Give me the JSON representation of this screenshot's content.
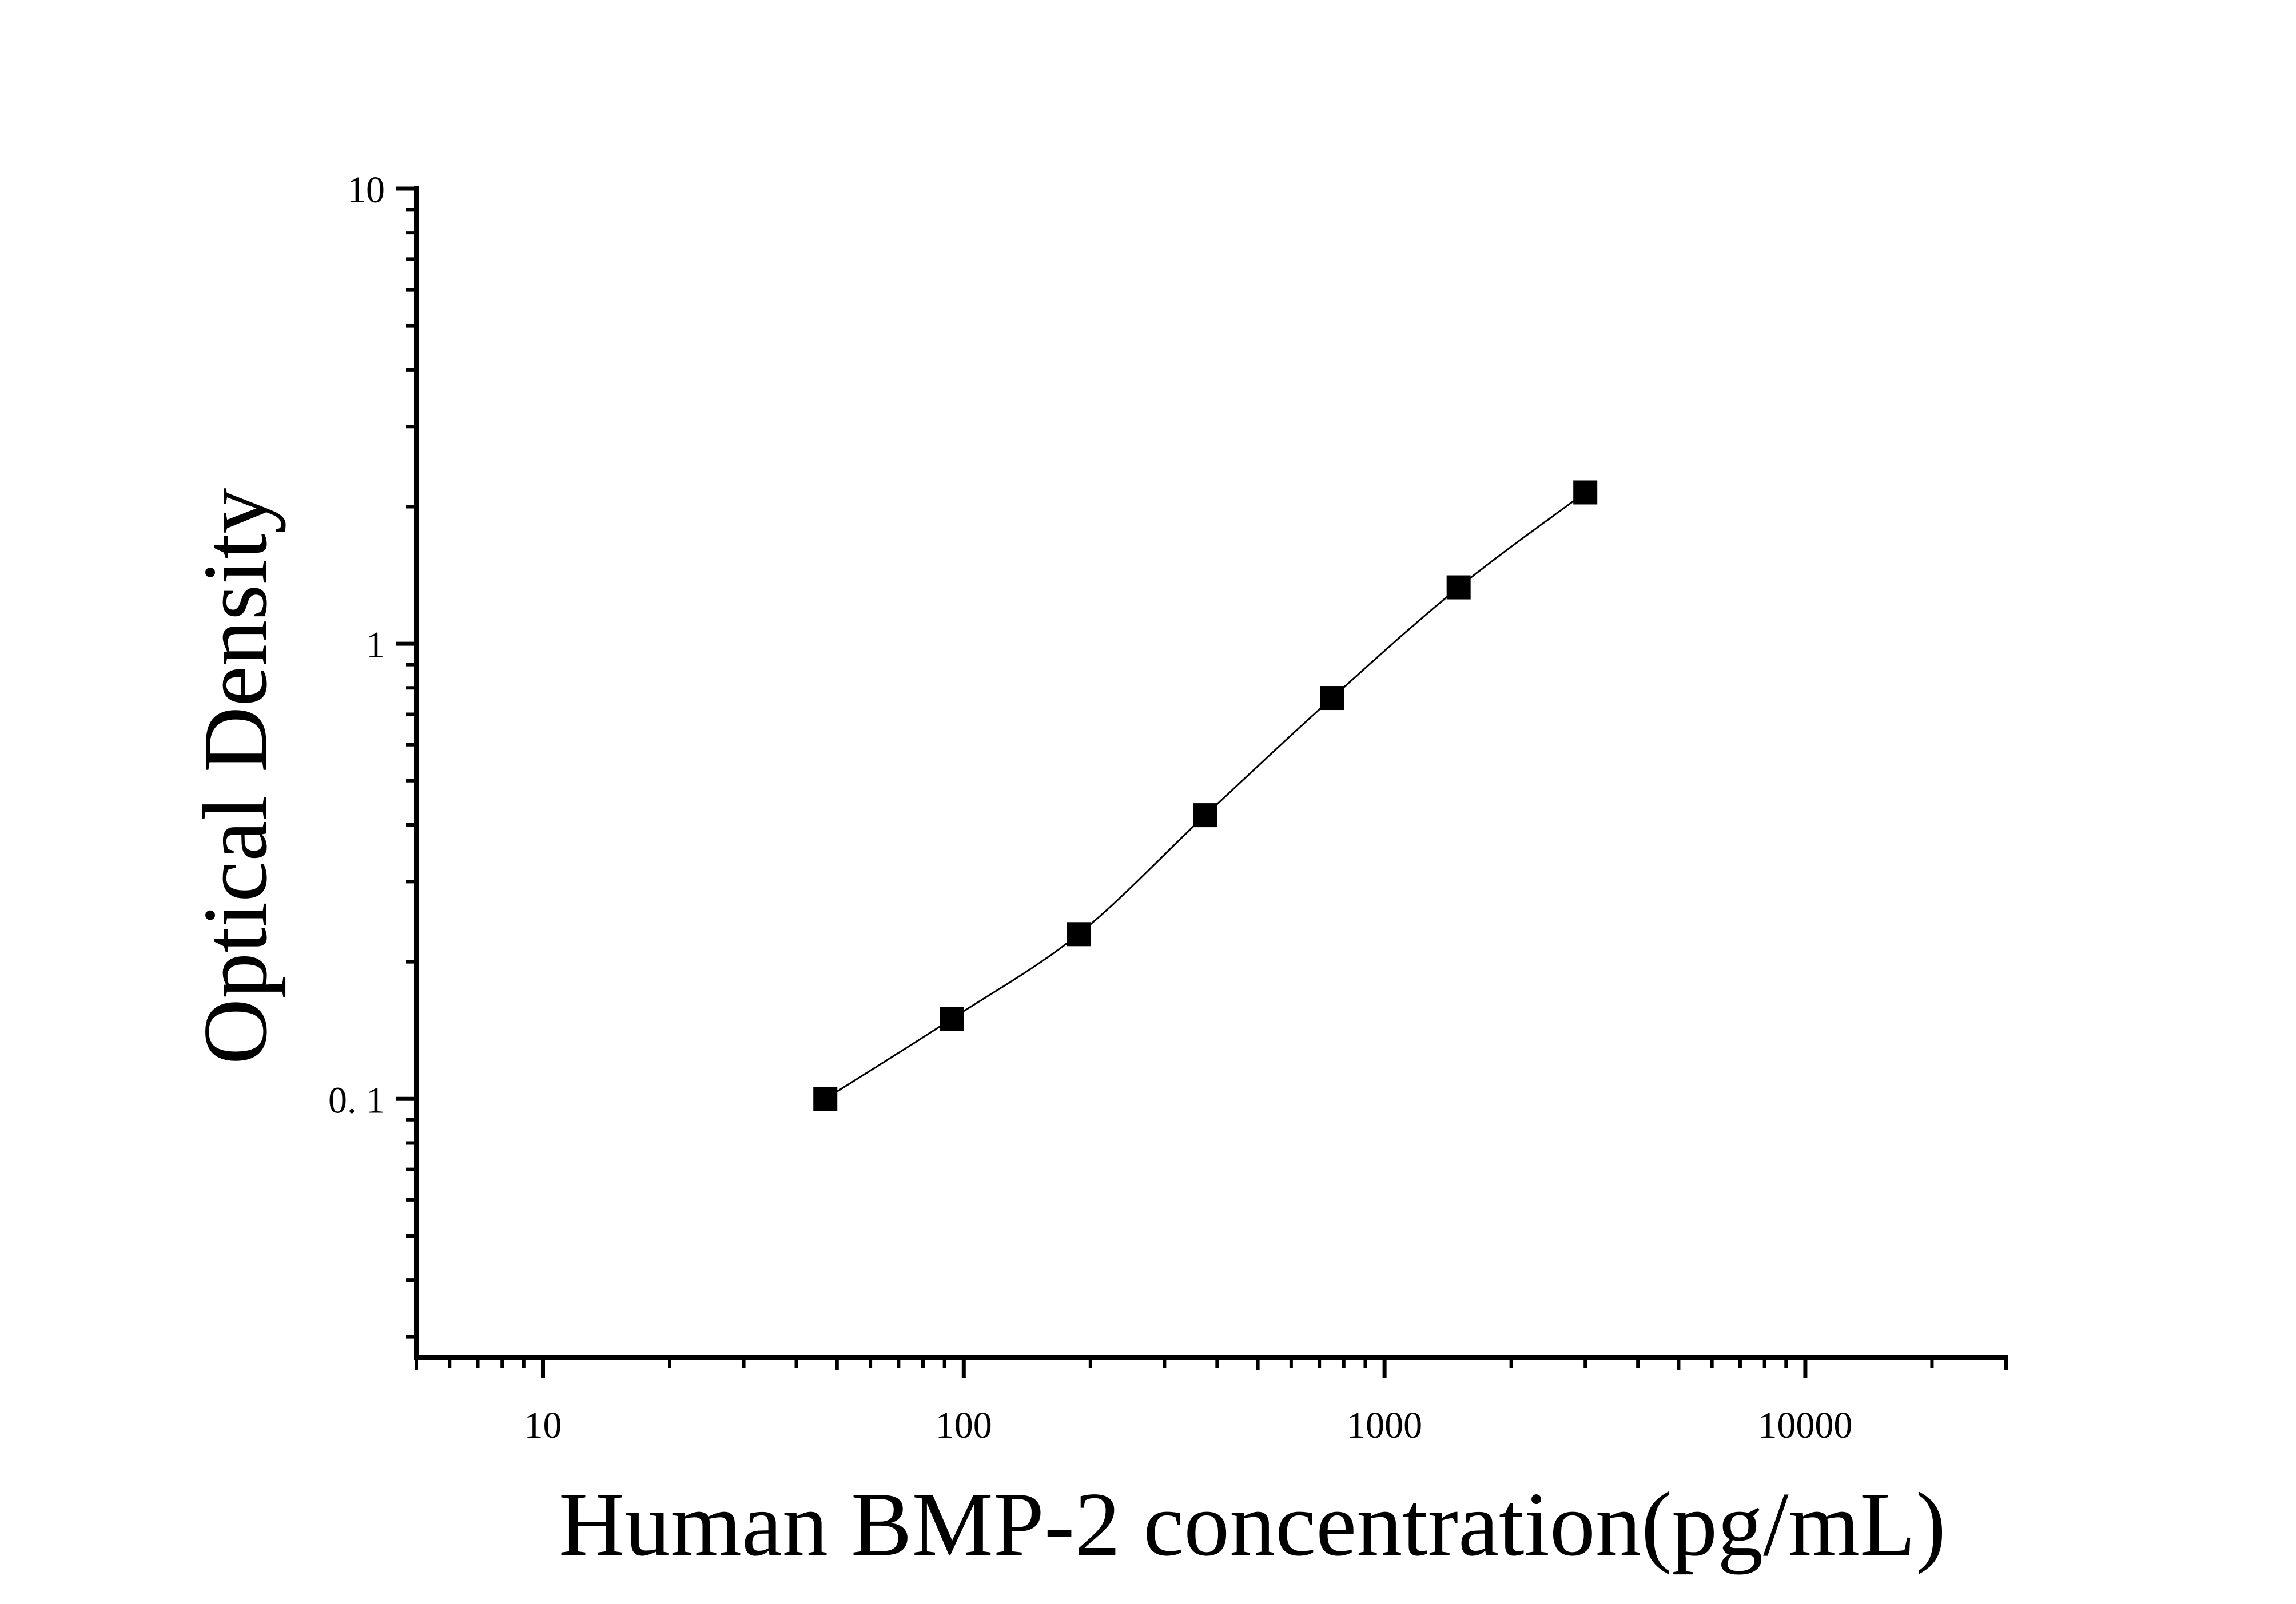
{
  "chart_data": {
    "type": "scatter",
    "xlabel": "Human BMP-2 concentration(pg/mL)",
    "ylabel": "Optical Density",
    "x_scale": "log",
    "y_scale": "log",
    "xlim": [
      5,
      30000
    ],
    "ylim": [
      0.027,
      10
    ],
    "x_ticks": [
      {
        "value": 10,
        "label": "10"
      },
      {
        "value": 100,
        "label": "100"
      },
      {
        "value": 1000,
        "label": "1000"
      },
      {
        "value": 10000,
        "label": "10000"
      }
    ],
    "y_ticks": [
      {
        "value": 0.1,
        "label": "0. 1"
      },
      {
        "value": 1,
        "label": "1"
      },
      {
        "value": 10,
        "label": "10"
      }
    ],
    "series": [
      {
        "marker": "square",
        "fit_curve": true,
        "color": "#000000",
        "x": [
          46.88,
          93.75,
          187.5,
          375,
          750,
          1500,
          3000
        ],
        "y": [
          0.1,
          0.15,
          0.23,
          0.42,
          0.76,
          1.33,
          2.15
        ]
      }
    ],
    "grid": false,
    "legend": "none"
  }
}
